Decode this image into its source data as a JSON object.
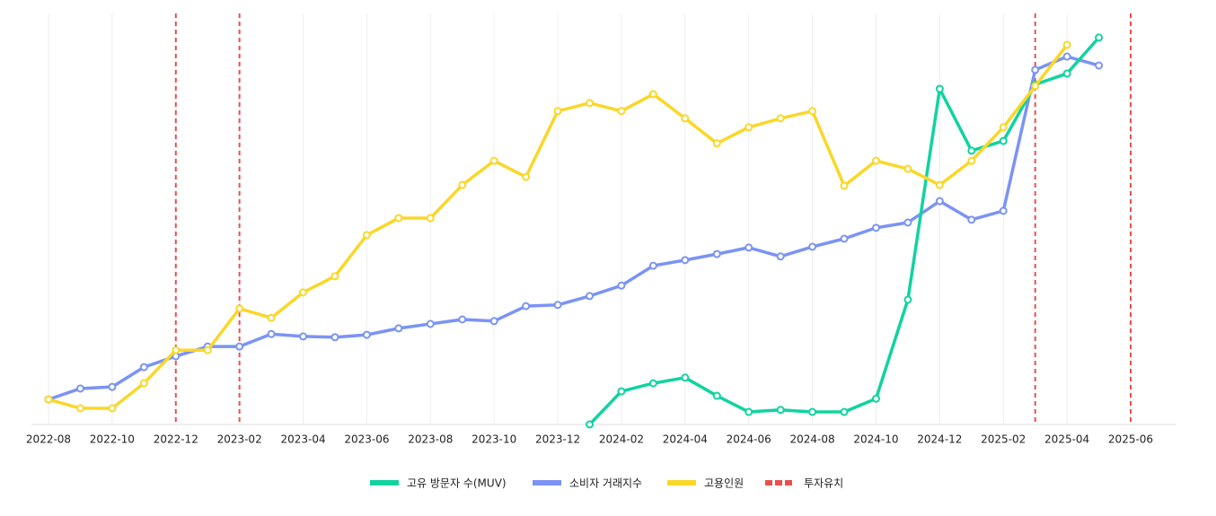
{
  "chart_data": {
    "type": "line",
    "x": [
      "2022-08",
      "2022-09",
      "2022-10",
      "2022-11",
      "2022-12",
      "2023-01",
      "2023-02",
      "2023-03",
      "2023-04",
      "2023-05",
      "2023-06",
      "2023-07",
      "2023-08",
      "2023-09",
      "2023-10",
      "2023-11",
      "2023-12",
      "2024-01",
      "2024-02",
      "2024-03",
      "2024-04",
      "2024-05",
      "2024-06",
      "2024-07",
      "2024-08",
      "2024-09",
      "2024-10",
      "2024-11",
      "2024-12",
      "2025-01",
      "2025-02",
      "2025-03",
      "2025-04",
      "2025-05"
    ],
    "xlim": [
      "2022-08",
      "2025-06"
    ],
    "xticks": [
      "2022-08",
      "2022-10",
      "2022-12",
      "2023-02",
      "2023-04",
      "2023-06",
      "2023-08",
      "2023-10",
      "2023-12",
      "2024-02",
      "2024-04",
      "2024-06",
      "2024-08",
      "2024-10",
      "2024-12",
      "2025-02",
      "2025-04",
      "2025-06"
    ],
    "ylim": [
      0,
      100
    ],
    "grid": true,
    "series": [
      {
        "name": "고유 방문자 수(MUV)",
        "color": "#10d3a0",
        "values": [
          null,
          null,
          null,
          null,
          null,
          null,
          null,
          null,
          null,
          null,
          null,
          null,
          null,
          null,
          null,
          null,
          null,
          0,
          8.2,
          10.2,
          11.6,
          7.1,
          3.1,
          3.6,
          3.1,
          3.1,
          6.4,
          30.9,
          83.1,
          67.8,
          70.2,
          84.2,
          86.9,
          95.8
        ]
      },
      {
        "name": "소비자 거래지수",
        "color": "#7b93f5",
        "values": [
          6.2,
          8.9,
          9.3,
          14.2,
          16.9,
          19.3,
          19.3,
          22.4,
          21.8,
          21.6,
          22.2,
          23.8,
          24.9,
          26.0,
          25.6,
          29.3,
          29.6,
          31.8,
          34.4,
          39.3,
          40.7,
          42.2,
          43.8,
          41.6,
          44.0,
          46.0,
          48.7,
          50.0,
          55.3,
          50.7,
          52.9,
          87.8,
          91.1,
          88.9
        ]
      },
      {
        "name": "고용인원",
        "color": "#fad728",
        "values": [
          6.2,
          4.0,
          4.0,
          10.2,
          18.4,
          18.4,
          28.7,
          26.4,
          32.7,
          36.7,
          46.9,
          51.1,
          51.1,
          59.3,
          65.3,
          61.3,
          77.6,
          79.6,
          77.6,
          81.8,
          75.8,
          69.6,
          73.6,
          75.8,
          77.6,
          59.1,
          65.3,
          63.3,
          59.3,
          65.3,
          73.6,
          83.8,
          94.0,
          null
        ]
      }
    ],
    "events": {
      "name": "투자유치",
      "color": "#e84f4f",
      "x": [
        "2022-12",
        "2023-02",
        "2025-03",
        "2025-06"
      ]
    }
  }
}
